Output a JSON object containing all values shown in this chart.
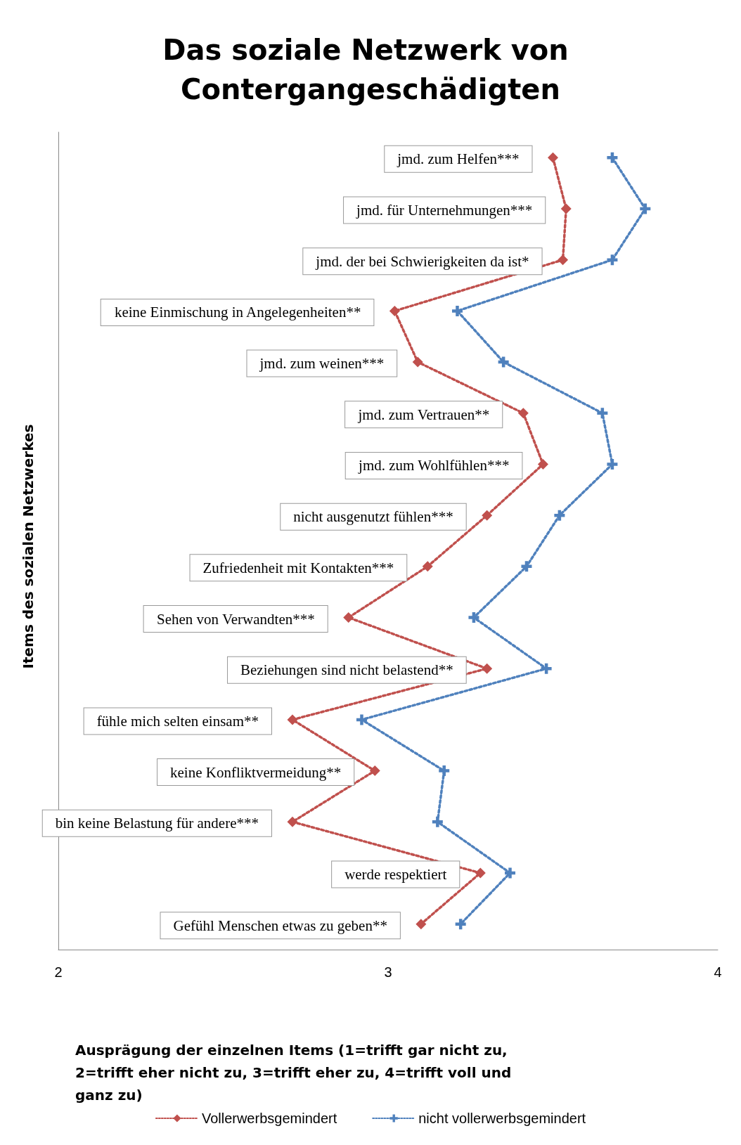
{
  "chart_data": {
    "type": "line",
    "title": "Das soziale Netzwerk von Contergangeschädigten",
    "xlabel": "Ausprägung der einzelnen Items (1=trifft gar nicht zu, 2=trifft eher nicht zu, 3=trifft eher zu, 4=trifft voll und ganz zu)",
    "ylabel": "Items des sozialen Netzwerkes",
    "categories": [
      "jmd. zum Helfen***",
      "jmd. für Unternehmungen***",
      "jmd. der bei Schwierigkeiten da ist*",
      "keine Einmischung in Angelegenheiten**",
      "jmd. zum weinen***",
      "jmd. zum Vertrauen**",
      "jmd. zum Wohlfühlen***",
      "nicht ausgenutzt fühlen***",
      "Zufriedenheit mit Kontakten***",
      "Sehen von Verwandten***",
      "Beziehungen sind nicht belastend**",
      "fühle mich selten einsam**",
      "keine Konfliktvermeidung**",
      "bin keine Belastung für andere***",
      "werde respektiert",
      "Gefühl Menschen etwas zu geben**"
    ],
    "series": [
      {
        "name": "Vollerwerbsgemindert",
        "color": "#c0504d",
        "marker": "diamond",
        "values": [
          3.5,
          3.54,
          3.53,
          3.02,
          3.09,
          3.41,
          3.47,
          3.3,
          3.12,
          2.88,
          3.3,
          2.71,
          2.96,
          2.71,
          3.28,
          3.1
        ]
      },
      {
        "name": "nicht vollerwerbsgemindert",
        "color": "#4f81bd",
        "marker": "cross",
        "values": [
          3.68,
          3.78,
          3.68,
          3.21,
          3.35,
          3.65,
          3.68,
          3.52,
          3.42,
          3.26,
          3.48,
          2.92,
          3.17,
          3.15,
          3.37,
          3.22
        ]
      }
    ],
    "orientation": "horizontal",
    "xlim": [
      2,
      4
    ],
    "xticks": [
      2,
      3,
      4
    ],
    "tick_labels": "x",
    "grid": false,
    "legend": "bottom",
    "line_style": "dotted"
  }
}
